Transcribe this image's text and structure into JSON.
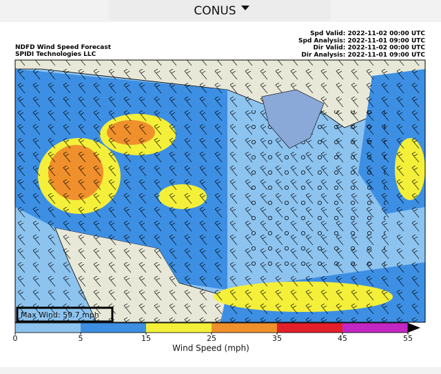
{
  "header": {
    "title": "CONUS"
  },
  "map": {
    "title": "NDFD Wind Speed Forecast",
    "source": "SPIDI Technologies LLC",
    "times": [
      "Spd Valid: 2022-11-02 00:00 UTC",
      "Spd Analysis: 2022-11-01 09:00 UTC",
      "Dir Valid: 2022-11-02 00:00 UTC",
      "Dir Analysis: 2022-11-01 09:00 UTC"
    ],
    "max_wind": "Max Wind: 59.7 mph"
  },
  "colorbar": {
    "label": "Wind Speed (mph)",
    "bins": [
      0,
      5,
      15,
      25,
      35,
      45,
      55
    ],
    "colors": [
      "#8dc3ef",
      "#3d8fe3",
      "#f4f03a",
      "#f0902c",
      "#e3202a",
      "#c227c4"
    ],
    "overflow_color": "#000000"
  }
}
